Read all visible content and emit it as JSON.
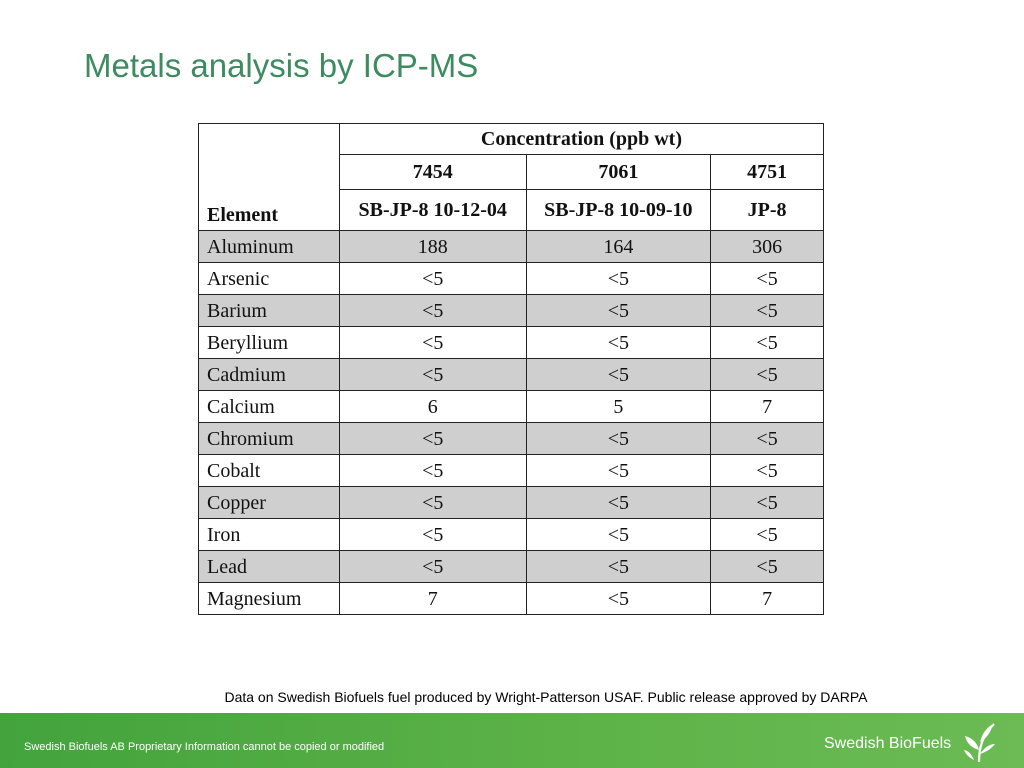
{
  "slide": {
    "title": "Metals analysis by ICP-MS",
    "caption": "Data on Swedish Biofuels fuel produced by Wright-Patterson USAF. Public release approved by DARPA",
    "footer_note": "Swedish Biofuels AB Proprietary Information cannot be copied or modified",
    "brand": "Swedish BioFuels",
    "accent_color": "#3d8b5f",
    "footer_color": "#4ea842",
    "row_shade_color": "#cfcfcf"
  },
  "table": {
    "element_header": "Element",
    "group_header": "Concentration (ppb wt)",
    "samples": [
      {
        "id": "7454",
        "name": "SB-JP-8 10-12-04"
      },
      {
        "id": "7061",
        "name": "SB-JP-8 10-09-10"
      },
      {
        "id": "4751",
        "name": "JP-8"
      }
    ],
    "rows": [
      {
        "element": "Aluminum",
        "values": [
          "188",
          "164",
          "306"
        ]
      },
      {
        "element": "Arsenic",
        "values": [
          "<5",
          "<5",
          "<5"
        ]
      },
      {
        "element": "Barium",
        "values": [
          "<5",
          "<5",
          "<5"
        ]
      },
      {
        "element": "Beryllium",
        "values": [
          "<5",
          "<5",
          "<5"
        ]
      },
      {
        "element": "Cadmium",
        "values": [
          "<5",
          "<5",
          "<5"
        ]
      },
      {
        "element": "Calcium",
        "values": [
          "6",
          "5",
          "7"
        ]
      },
      {
        "element": "Chromium",
        "values": [
          "<5",
          "<5",
          "<5"
        ]
      },
      {
        "element": "Cobalt",
        "values": [
          "<5",
          "<5",
          "<5"
        ]
      },
      {
        "element": "Copper",
        "values": [
          "<5",
          "<5",
          "<5"
        ]
      },
      {
        "element": "Iron",
        "values": [
          "<5",
          "<5",
          "<5"
        ]
      },
      {
        "element": "Lead",
        "values": [
          "<5",
          "<5",
          "<5"
        ]
      },
      {
        "element": "Magnesium",
        "values": [
          "7",
          "<5",
          "7"
        ]
      }
    ]
  }
}
